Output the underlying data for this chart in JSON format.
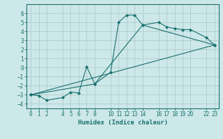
{
  "xlabel": "Humidex (Indice chaleur)",
  "bg_color": "#cde8e8",
  "grid_color": "#b0cccc",
  "line_color": "#1a7070",
  "xlim": [
    -0.5,
    23.5
  ],
  "ylim": [
    -4.5,
    7.0
  ],
  "xticks": [
    0,
    1,
    2,
    4,
    5,
    6,
    7,
    8,
    10,
    11,
    12,
    13,
    14,
    16,
    17,
    18,
    19,
    20,
    22,
    23
  ],
  "yticks": [
    -4,
    -3,
    -2,
    -1,
    0,
    1,
    2,
    3,
    4,
    5,
    6
  ],
  "line1_x": [
    0,
    1,
    2,
    4,
    5,
    6,
    7,
    8,
    10,
    11,
    12,
    13,
    14,
    16,
    17,
    18,
    19,
    20,
    22,
    23
  ],
  "line1_y": [
    -3.0,
    -3.1,
    -3.6,
    -3.3,
    -2.7,
    -2.8,
    0.1,
    -1.8,
    -0.5,
    5.0,
    5.8,
    5.8,
    4.7,
    5.0,
    4.5,
    4.3,
    4.2,
    4.2,
    3.3,
    2.5
  ],
  "line2_x": [
    0,
    23
  ],
  "line2_y": [
    -3.0,
    2.5
  ],
  "line3_x": [
    0,
    8,
    14,
    23
  ],
  "line3_y": [
    -3.0,
    -1.8,
    4.7,
    2.5
  ],
  "marker": "D",
  "markersize": 2,
  "linewidth": 0.8,
  "tick_fontsize": 5.5,
  "xlabel_fontsize": 6.5
}
